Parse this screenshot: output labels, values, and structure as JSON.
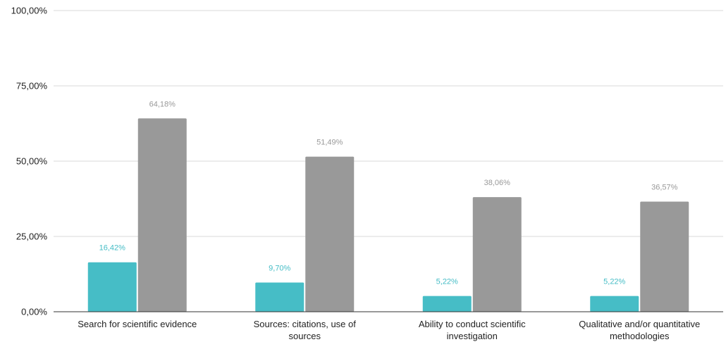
{
  "chart_data": {
    "type": "bar",
    "title": "",
    "xlabel": "",
    "ylabel": "",
    "categories": [
      [
        "Search for scientific evidence"
      ],
      [
        "Sources: citations, use of",
        "sources"
      ],
      [
        "Ability to conduct scientific",
        "investigation"
      ],
      [
        "Qualitative and/or quantitative",
        "methodologies"
      ]
    ],
    "series": [
      {
        "color": "#46bdc6",
        "values": [
          16.42,
          9.7,
          5.22,
          5.22
        ],
        "value_labels": [
          "16,42%",
          "9,70%",
          "5,22%",
          "5,22%"
        ]
      },
      {
        "color": "#999999",
        "values": [
          64.18,
          51.49,
          38.06,
          36.57
        ],
        "value_labels": [
          "64,18%",
          "51,49%",
          "38,06%",
          "36,57%"
        ]
      }
    ],
    "ylim": [
      0,
      100
    ],
    "yticks": [
      0,
      25,
      50,
      75,
      100
    ],
    "ytick_labels": [
      "0,00%",
      "25,00%",
      "50,00%",
      "75,00%",
      "100,00%"
    ],
    "grid": true,
    "legend": "none"
  }
}
